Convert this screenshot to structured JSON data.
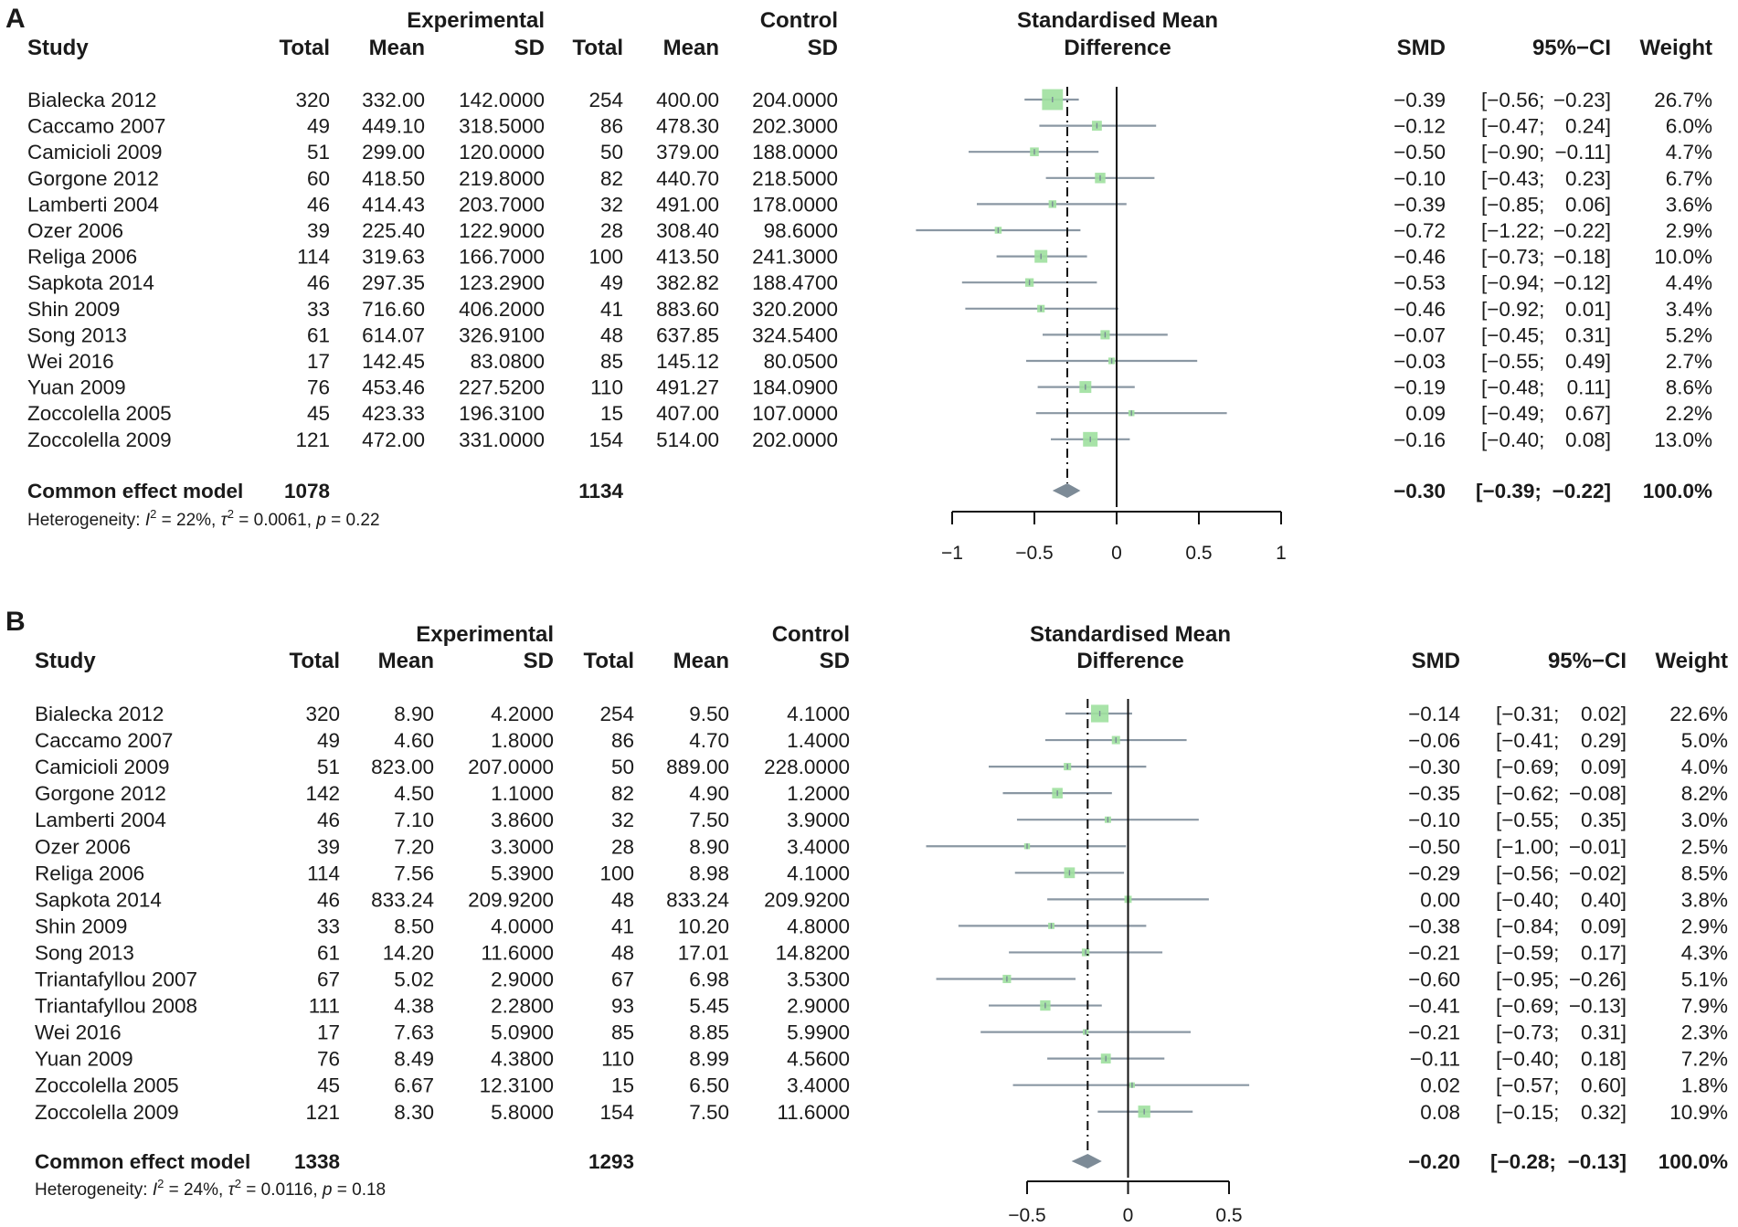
{
  "columns": {
    "study": "Study",
    "total": "Total",
    "mean": "Mean",
    "sd": "SD",
    "experimental": "Experimental",
    "control": "Control",
    "smd_title_1": "Standardised Mean",
    "smd_title_2": "Difference",
    "smd": "SMD",
    "ci": "95%−CI",
    "weight": "Weight"
  },
  "chart_data": [
    {
      "type": "forest",
      "panel": "A",
      "xlim": [
        -1,
        1
      ],
      "ticks": [
        -1,
        -0.5,
        0,
        0.5,
        1
      ],
      "tick_labels": [
        "−1",
        "−0.5",
        "0",
        "0.5",
        "1"
      ],
      "pooled_estimate": -0.3,
      "studies": [
        {
          "study": "Bialecka 2012",
          "e_total": "320",
          "e_mean": "332.00",
          "e_sd": "142.0000",
          "c_total": "254",
          "c_mean": "400.00",
          "c_sd": "204.0000",
          "smd_text": "−0.39",
          "ci_text": "[−0.56; −0.23]",
          "weight_text": "26.7%",
          "smd": -0.39,
          "lo": -0.56,
          "hi": -0.23,
          "weight": 26.7
        },
        {
          "study": "Caccamo 2007",
          "e_total": "49",
          "e_mean": "449.10",
          "e_sd": "318.5000",
          "c_total": "86",
          "c_mean": "478.30",
          "c_sd": "202.3000",
          "smd_text": "−0.12",
          "ci_text": "[−0.47; 0.24]",
          "weight_text": "6.0%",
          "smd": -0.12,
          "lo": -0.47,
          "hi": 0.24,
          "weight": 6.0
        },
        {
          "study": "Camicioli 2009",
          "e_total": "51",
          "e_mean": "299.00",
          "e_sd": "120.0000",
          "c_total": "50",
          "c_mean": "379.00",
          "c_sd": "188.0000",
          "smd_text": "−0.50",
          "ci_text": "[−0.90; −0.11]",
          "weight_text": "4.7%",
          "smd": -0.5,
          "lo": -0.9,
          "hi": -0.11,
          "weight": 4.7
        },
        {
          "study": "Gorgone 2012",
          "e_total": "60",
          "e_mean": "418.50",
          "e_sd": "219.8000",
          "c_total": "82",
          "c_mean": "440.70",
          "c_sd": "218.5000",
          "smd_text": "−0.10",
          "ci_text": "[−0.43; 0.23]",
          "weight_text": "6.7%",
          "smd": -0.1,
          "lo": -0.43,
          "hi": 0.23,
          "weight": 6.7
        },
        {
          "study": "Lamberti 2004",
          "e_total": "46",
          "e_mean": "414.43",
          "e_sd": "203.7000",
          "c_total": "32",
          "c_mean": "491.00",
          "c_sd": "178.0000",
          "smd_text": "−0.39",
          "ci_text": "[−0.85; 0.06]",
          "weight_text": "3.6%",
          "smd": -0.39,
          "lo": -0.85,
          "hi": 0.06,
          "weight": 3.6
        },
        {
          "study": "Ozer 2006",
          "e_total": "39",
          "e_mean": "225.40",
          "e_sd": "122.9000",
          "c_total": "28",
          "c_mean": "308.40",
          "c_sd": "98.6000",
          "smd_text": "−0.72",
          "ci_text": "[−1.22; −0.22]",
          "weight_text": "2.9%",
          "smd": -0.72,
          "lo": -1.22,
          "hi": -0.22,
          "weight": 2.9
        },
        {
          "study": "Religa 2006",
          "e_total": "114",
          "e_mean": "319.63",
          "e_sd": "166.7000",
          "c_total": "100",
          "c_mean": "413.50",
          "c_sd": "241.3000",
          "smd_text": "−0.46",
          "ci_text": "[−0.73; −0.18]",
          "weight_text": "10.0%",
          "smd": -0.46,
          "lo": -0.73,
          "hi": -0.18,
          "weight": 10.0
        },
        {
          "study": "Sapkota 2014",
          "e_total": "46",
          "e_mean": "297.35",
          "e_sd": "123.2900",
          "c_total": "49",
          "c_mean": "382.82",
          "c_sd": "188.4700",
          "smd_text": "−0.53",
          "ci_text": "[−0.94; −0.12]",
          "weight_text": "4.4%",
          "smd": -0.53,
          "lo": -0.94,
          "hi": -0.12,
          "weight": 4.4
        },
        {
          "study": "Shin 2009",
          "e_total": "33",
          "e_mean": "716.60",
          "e_sd": "406.2000",
          "c_total": "41",
          "c_mean": "883.60",
          "c_sd": "320.2000",
          "smd_text": "−0.46",
          "ci_text": "[−0.92; 0.01]",
          "weight_text": "3.4%",
          "smd": -0.46,
          "lo": -0.92,
          "hi": 0.01,
          "weight": 3.4
        },
        {
          "study": "Song 2013",
          "e_total": "61",
          "e_mean": "614.07",
          "e_sd": "326.9100",
          "c_total": "48",
          "c_mean": "637.85",
          "c_sd": "324.5400",
          "smd_text": "−0.07",
          "ci_text": "[−0.45; 0.31]",
          "weight_text": "5.2%",
          "smd": -0.07,
          "lo": -0.45,
          "hi": 0.31,
          "weight": 5.2
        },
        {
          "study": "Wei 2016",
          "e_total": "17",
          "e_mean": "142.45",
          "e_sd": "83.0800",
          "c_total": "85",
          "c_mean": "145.12",
          "c_sd": "80.0500",
          "smd_text": "−0.03",
          "ci_text": "[−0.55; 0.49]",
          "weight_text": "2.7%",
          "smd": -0.03,
          "lo": -0.55,
          "hi": 0.49,
          "weight": 2.7
        },
        {
          "study": "Yuan 2009",
          "e_total": "76",
          "e_mean": "453.46",
          "e_sd": "227.5200",
          "c_total": "110",
          "c_mean": "491.27",
          "c_sd": "184.0900",
          "smd_text": "−0.19",
          "ci_text": "[−0.48; 0.11]",
          "weight_text": "8.6%",
          "smd": -0.19,
          "lo": -0.48,
          "hi": 0.11,
          "weight": 8.6
        },
        {
          "study": "Zoccolella 2005",
          "e_total": "45",
          "e_mean": "423.33",
          "e_sd": "196.3100",
          "c_total": "15",
          "c_mean": "407.00",
          "c_sd": "107.0000",
          "smd_text": "0.09",
          "ci_text": "[−0.49; 0.67]",
          "weight_text": "2.2%",
          "smd": 0.09,
          "lo": -0.49,
          "hi": 0.67,
          "weight": 2.2
        },
        {
          "study": "Zoccolella 2009",
          "e_total": "121",
          "e_mean": "472.00",
          "e_sd": "331.0000",
          "c_total": "154",
          "c_mean": "514.00",
          "c_sd": "202.0000",
          "smd_text": "−0.16",
          "ci_text": "[−0.40; 0.08]",
          "weight_text": "13.0%",
          "smd": -0.16,
          "lo": -0.4,
          "hi": 0.08,
          "weight": 13.0
        }
      ],
      "summary": {
        "label": "Common effect model",
        "e_total": "1078",
        "c_total": "1134",
        "smd_text": "−0.30",
        "ci_text": "[−0.39; −0.22]",
        "weight_text": "100.0%",
        "smd": -0.3,
        "lo": -0.39,
        "hi": -0.22,
        "heterogeneity": {
          "prefix": "Heterogeneity: ",
          "i2": " = 22%, ",
          "tau2": " = 0.0061, ",
          "p": " = 0.22"
        }
      }
    },
    {
      "type": "forest",
      "panel": "B",
      "xlim": [
        -0.5,
        0.5
      ],
      "ticks": [
        -0.5,
        0,
        0.5
      ],
      "tick_labels": [
        "−0.5",
        "0",
        "0.5"
      ],
      "pooled_estimate": -0.2,
      "studies": [
        {
          "study": "Bialecka 2012",
          "e_total": "320",
          "e_mean": "8.90",
          "e_sd": "4.2000",
          "c_total": "254",
          "c_mean": "9.50",
          "c_sd": "4.1000",
          "smd_text": "−0.14",
          "ci_text": "[−0.31; 0.02]",
          "weight_text": "22.6%",
          "smd": -0.14,
          "lo": -0.31,
          "hi": 0.02,
          "weight": 22.6
        },
        {
          "study": "Caccamo 2007",
          "e_total": "49",
          "e_mean": "4.60",
          "e_sd": "1.8000",
          "c_total": "86",
          "c_mean": "4.70",
          "c_sd": "1.4000",
          "smd_text": "−0.06",
          "ci_text": "[−0.41; 0.29]",
          "weight_text": "5.0%",
          "smd": -0.06,
          "lo": -0.41,
          "hi": 0.29,
          "weight": 5.0
        },
        {
          "study": "Camicioli 2009",
          "e_total": "51",
          "e_mean": "823.00",
          "e_sd": "207.0000",
          "c_total": "50",
          "c_mean": "889.00",
          "c_sd": "228.0000",
          "smd_text": "−0.30",
          "ci_text": "[−0.69; 0.09]",
          "weight_text": "4.0%",
          "smd": -0.3,
          "lo": -0.69,
          "hi": 0.09,
          "weight": 4.0
        },
        {
          "study": "Gorgone 2012",
          "e_total": "142",
          "e_mean": "4.50",
          "e_sd": "1.1000",
          "c_total": "82",
          "c_mean": "4.90",
          "c_sd": "1.2000",
          "smd_text": "−0.35",
          "ci_text": "[−0.62; −0.08]",
          "weight_text": "8.2%",
          "smd": -0.35,
          "lo": -0.62,
          "hi": -0.08,
          "weight": 8.2
        },
        {
          "study": "Lamberti 2004",
          "e_total": "46",
          "e_mean": "7.10",
          "e_sd": "3.8600",
          "c_total": "32",
          "c_mean": "7.50",
          "c_sd": "3.9000",
          "smd_text": "−0.10",
          "ci_text": "[−0.55; 0.35]",
          "weight_text": "3.0%",
          "smd": -0.1,
          "lo": -0.55,
          "hi": 0.35,
          "weight": 3.0
        },
        {
          "study": "Ozer 2006",
          "e_total": "39",
          "e_mean": "7.20",
          "e_sd": "3.3000",
          "c_total": "28",
          "c_mean": "8.90",
          "c_sd": "3.4000",
          "smd_text": "−0.50",
          "ci_text": "[−1.00; −0.01]",
          "weight_text": "2.5%",
          "smd": -0.5,
          "lo": -1.0,
          "hi": -0.01,
          "weight": 2.5
        },
        {
          "study": "Religa 2006",
          "e_total": "114",
          "e_mean": "7.56",
          "e_sd": "5.3900",
          "c_total": "100",
          "c_mean": "8.98",
          "c_sd": "4.1000",
          "smd_text": "−0.29",
          "ci_text": "[−0.56; −0.02]",
          "weight_text": "8.5%",
          "smd": -0.29,
          "lo": -0.56,
          "hi": -0.02,
          "weight": 8.5
        },
        {
          "study": "Sapkota 2014",
          "e_total": "46",
          "e_mean": "833.24",
          "e_sd": "209.9200",
          "c_total": "48",
          "c_mean": "833.24",
          "c_sd": "209.9200",
          "smd_text": "0.00",
          "ci_text": "[−0.40; 0.40]",
          "weight_text": "3.8%",
          "smd": 0.0,
          "lo": -0.4,
          "hi": 0.4,
          "weight": 3.8
        },
        {
          "study": "Shin 2009",
          "e_total": "33",
          "e_mean": "8.50",
          "e_sd": "4.0000",
          "c_total": "41",
          "c_mean": "10.20",
          "c_sd": "4.8000",
          "smd_text": "−0.38",
          "ci_text": "[−0.84; 0.09]",
          "weight_text": "2.9%",
          "smd": -0.38,
          "lo": -0.84,
          "hi": 0.09,
          "weight": 2.9
        },
        {
          "study": "Song 2013",
          "e_total": "61",
          "e_mean": "14.20",
          "e_sd": "11.6000",
          "c_total": "48",
          "c_mean": "17.01",
          "c_sd": "14.8200",
          "smd_text": "−0.21",
          "ci_text": "[−0.59; 0.17]",
          "weight_text": "4.3%",
          "smd": -0.21,
          "lo": -0.59,
          "hi": 0.17,
          "weight": 4.3
        },
        {
          "study": "Triantafyllou 2007",
          "e_total": "67",
          "e_mean": "5.02",
          "e_sd": "2.9000",
          "c_total": "67",
          "c_mean": "6.98",
          "c_sd": "3.5300",
          "smd_text": "−0.60",
          "ci_text": "[−0.95; −0.26]",
          "weight_text": "5.1%",
          "smd": -0.6,
          "lo": -0.95,
          "hi": -0.26,
          "weight": 5.1
        },
        {
          "study": "Triantafyllou 2008",
          "e_total": "111",
          "e_mean": "4.38",
          "e_sd": "2.2800",
          "c_total": "93",
          "c_mean": "5.45",
          "c_sd": "2.9000",
          "smd_text": "−0.41",
          "ci_text": "[−0.69; −0.13]",
          "weight_text": "7.9%",
          "smd": -0.41,
          "lo": -0.69,
          "hi": -0.13,
          "weight": 7.9
        },
        {
          "study": "Wei 2016",
          "e_total": "17",
          "e_mean": "7.63",
          "e_sd": "5.0900",
          "c_total": "85",
          "c_mean": "8.85",
          "c_sd": "5.9900",
          "smd_text": "−0.21",
          "ci_text": "[−0.73; 0.31]",
          "weight_text": "2.3%",
          "smd": -0.21,
          "lo": -0.73,
          "hi": 0.31,
          "weight": 2.3
        },
        {
          "study": "Yuan 2009",
          "e_total": "76",
          "e_mean": "8.49",
          "e_sd": "4.3800",
          "c_total": "110",
          "c_mean": "8.99",
          "c_sd": "4.5600",
          "smd_text": "−0.11",
          "ci_text": "[−0.40; 0.18]",
          "weight_text": "7.2%",
          "smd": -0.11,
          "lo": -0.4,
          "hi": 0.18,
          "weight": 7.2
        },
        {
          "study": "Zoccolella 2005",
          "e_total": "45",
          "e_mean": "6.67",
          "e_sd": "12.3100",
          "c_total": "15",
          "c_mean": "6.50",
          "c_sd": "3.4000",
          "smd_text": "0.02",
          "ci_text": "[−0.57; 0.60]",
          "weight_text": "1.8%",
          "smd": 0.02,
          "lo": -0.57,
          "hi": 0.6,
          "weight": 1.8
        },
        {
          "study": "Zoccolella 2009",
          "e_total": "121",
          "e_mean": "8.30",
          "e_sd": "5.8000",
          "c_total": "154",
          "c_mean": "7.50",
          "c_sd": "11.6000",
          "smd_text": "0.08",
          "ci_text": "[−0.15; 0.32]",
          "weight_text": "10.9%",
          "smd": 0.08,
          "lo": -0.15,
          "hi": 0.32,
          "weight": 10.9
        }
      ],
      "summary": {
        "label": "Common effect model",
        "e_total": "1338",
        "c_total": "1293",
        "smd_text": "−0.20",
        "ci_text": "[−0.28; −0.13]",
        "weight_text": "100.0%",
        "smd": -0.2,
        "lo": -0.28,
        "hi": -0.13,
        "heterogeneity": {
          "prefix": "Heterogeneity: ",
          "i2": " = 24%, ",
          "tau2": " = 0.0116, ",
          "p": " = 0.18"
        }
      }
    }
  ]
}
